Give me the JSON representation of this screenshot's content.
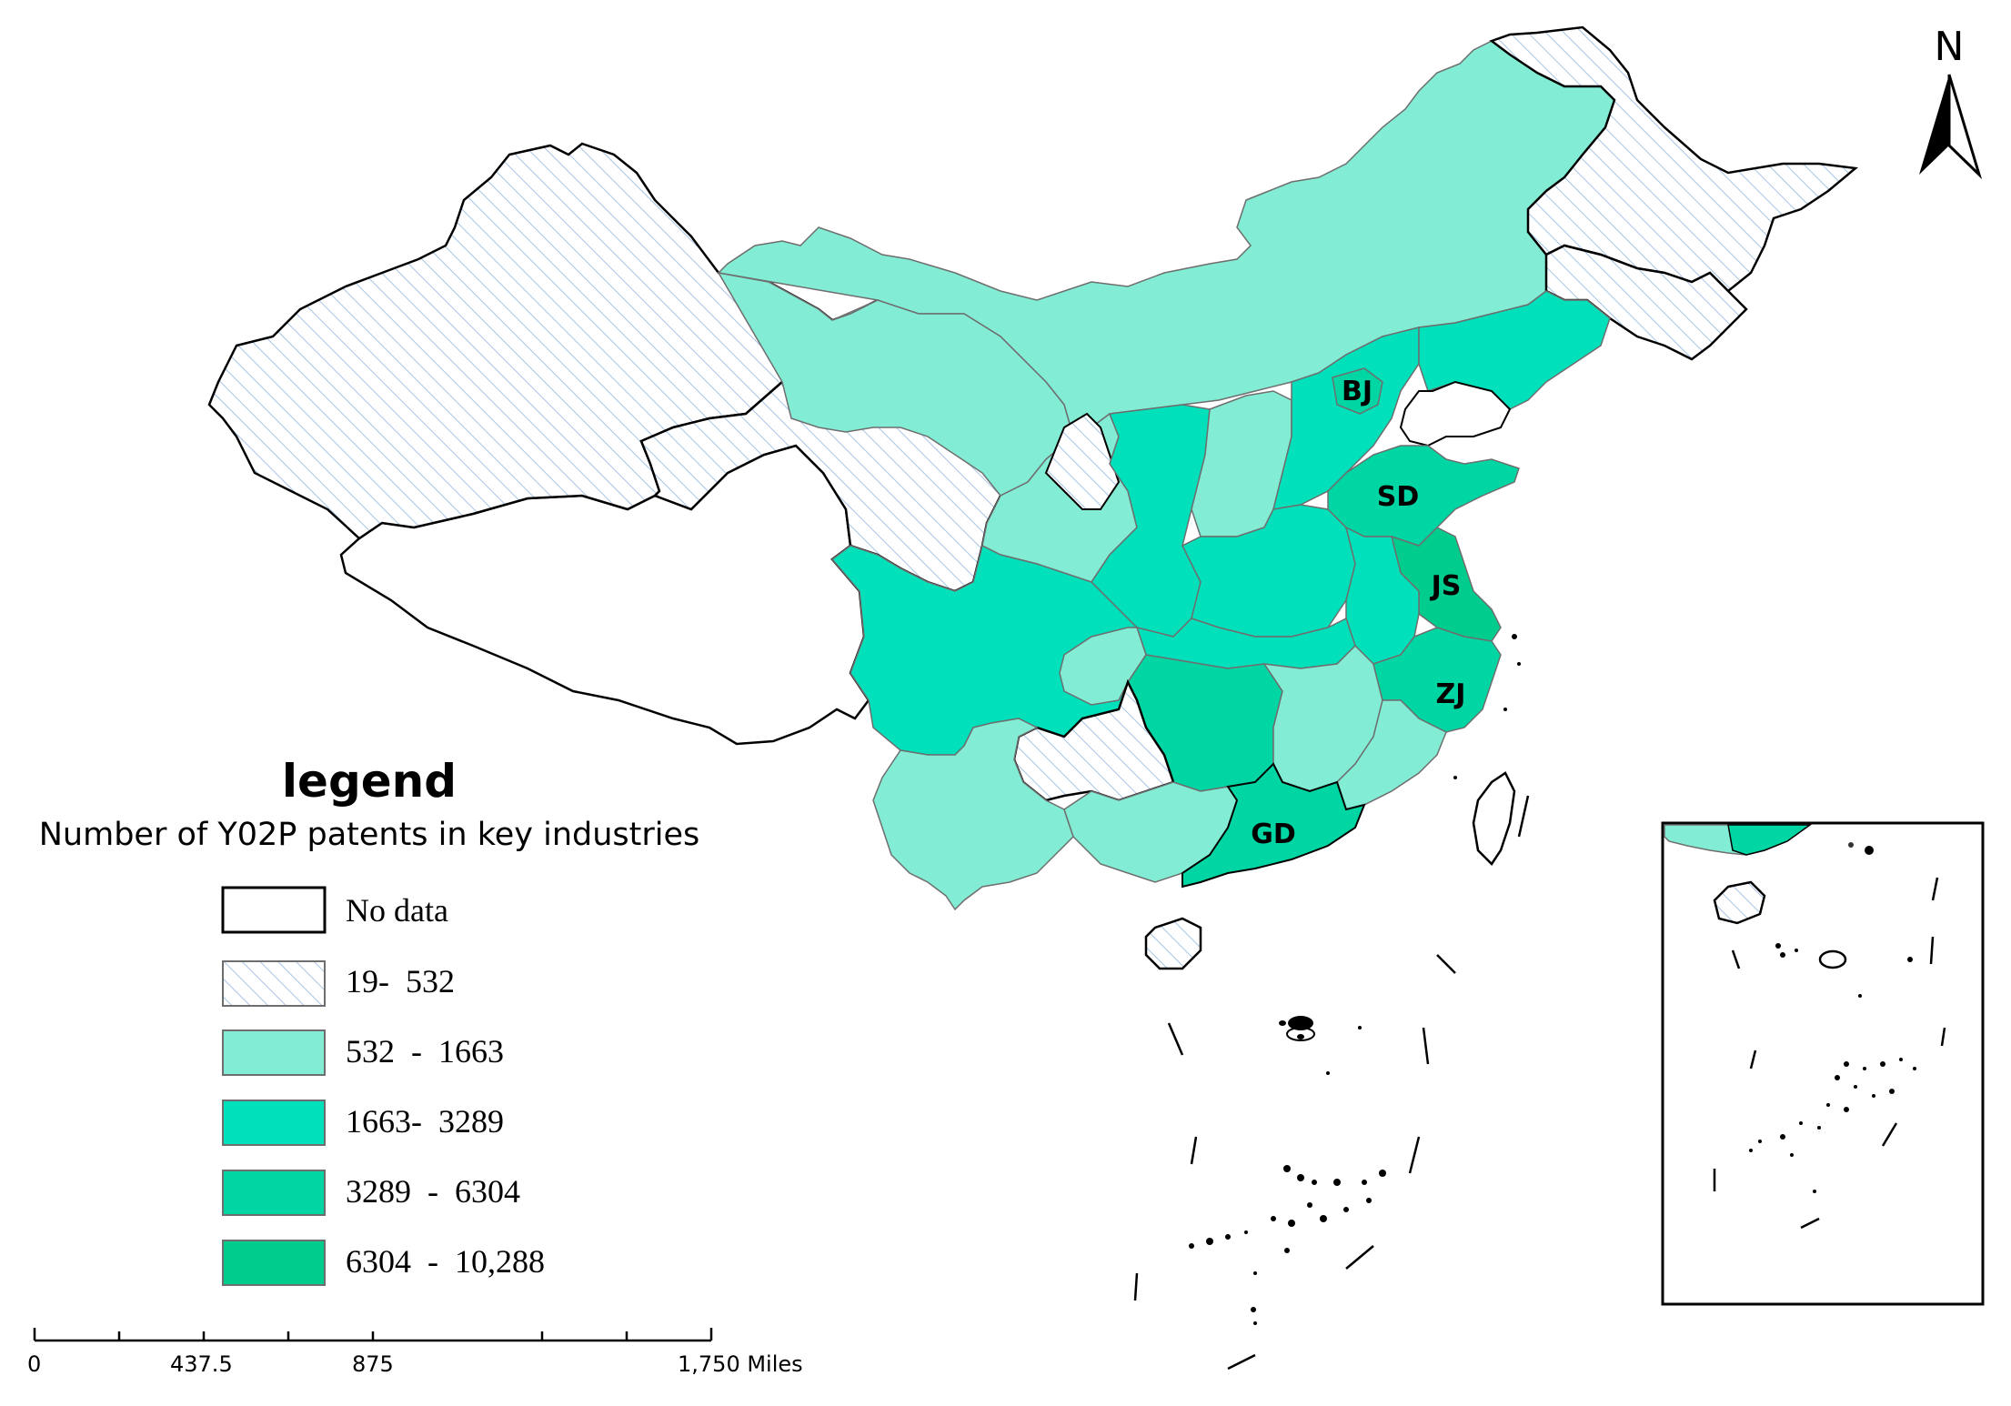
{
  "legend": {
    "title": "legend",
    "subtitle": "Number of Y02P patents in key industries",
    "classes": [
      {
        "label": "No data",
        "color": "#ffffff",
        "pattern": "none"
      },
      {
        "label": "19-  532",
        "color": "#ffffff",
        "pattern": "hatch",
        "hatch_color": "#a8c4e6"
      },
      {
        "label": "532  -  1663",
        "color": "#82ecd5"
      },
      {
        "label": "1663-  3289",
        "color": "#00e1bb"
      },
      {
        "label": "3289  -  6304",
        "color": "#00d6a4"
      },
      {
        "label": "6304  -  10,288",
        "color": "#00cc8e"
      }
    ]
  },
  "scale_bar": {
    "labels": [
      "0",
      "437.5",
      "875",
      "1,750 Miles"
    ]
  },
  "north_arrow": {
    "label": "N"
  },
  "province_labels": [
    "BJ",
    "SD",
    "JS",
    "ZJ",
    "GD"
  ],
  "colors": {
    "hatch_fill": "#ffffff",
    "hatch_line": "#a8c4e6",
    "class_532_1663": "#82ecd5",
    "class_1663_3289": "#00e1bb",
    "class_3289_6304": "#00d6a4",
    "class_6304_10288": "#00cc8e",
    "outline": "#000000",
    "inner_border": "#6e6e6e"
  }
}
